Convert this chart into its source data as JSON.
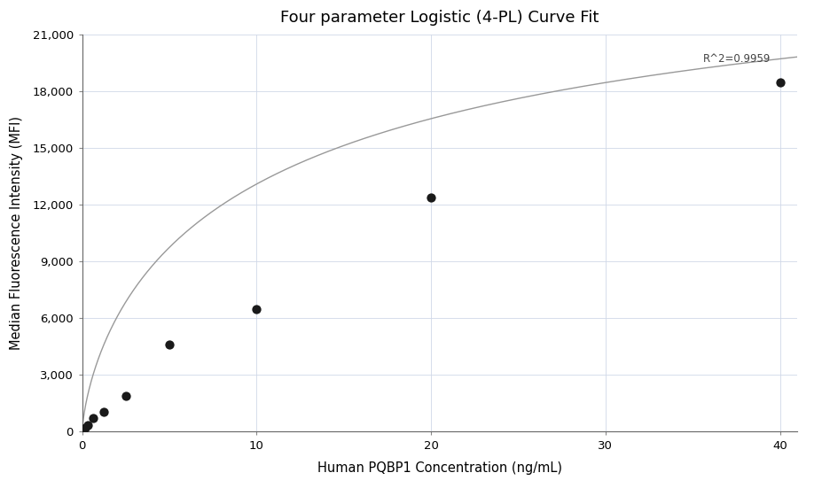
{
  "title": "Four parameter Logistic (4-PL) Curve Fit",
  "xlabel": "Human PQBP1 Concentration (ng/mL)",
  "ylabel": "Median Fluorescence Intensity (MFI)",
  "scatter_x": [
    0.078125,
    0.15625,
    0.3125,
    0.625,
    1.25,
    2.5,
    5.0,
    10.0,
    20.0,
    40.0
  ],
  "scatter_y": [
    100,
    200,
    350,
    700,
    1050,
    1900,
    4600,
    6500,
    12400,
    18500
  ],
  "xlim": [
    0,
    41
  ],
  "ylim": [
    0,
    21000
  ],
  "yticks": [
    0,
    3000,
    6000,
    9000,
    12000,
    15000,
    18000,
    21000
  ],
  "xticks": [
    0,
    10,
    20,
    30,
    40
  ],
  "r_squared": "R^2=0.9959",
  "dot_color": "#1a1a1a",
  "line_color": "#999999",
  "dot_size": 55,
  "background_color": "#ffffff",
  "grid_color": "#d0d8e8",
  "title_fontsize": 13,
  "label_fontsize": 10.5,
  "tick_fontsize": 9.5,
  "4pl_A": 30,
  "4pl_B": 0.72,
  "4pl_C": 12.0,
  "4pl_D": 28000
}
